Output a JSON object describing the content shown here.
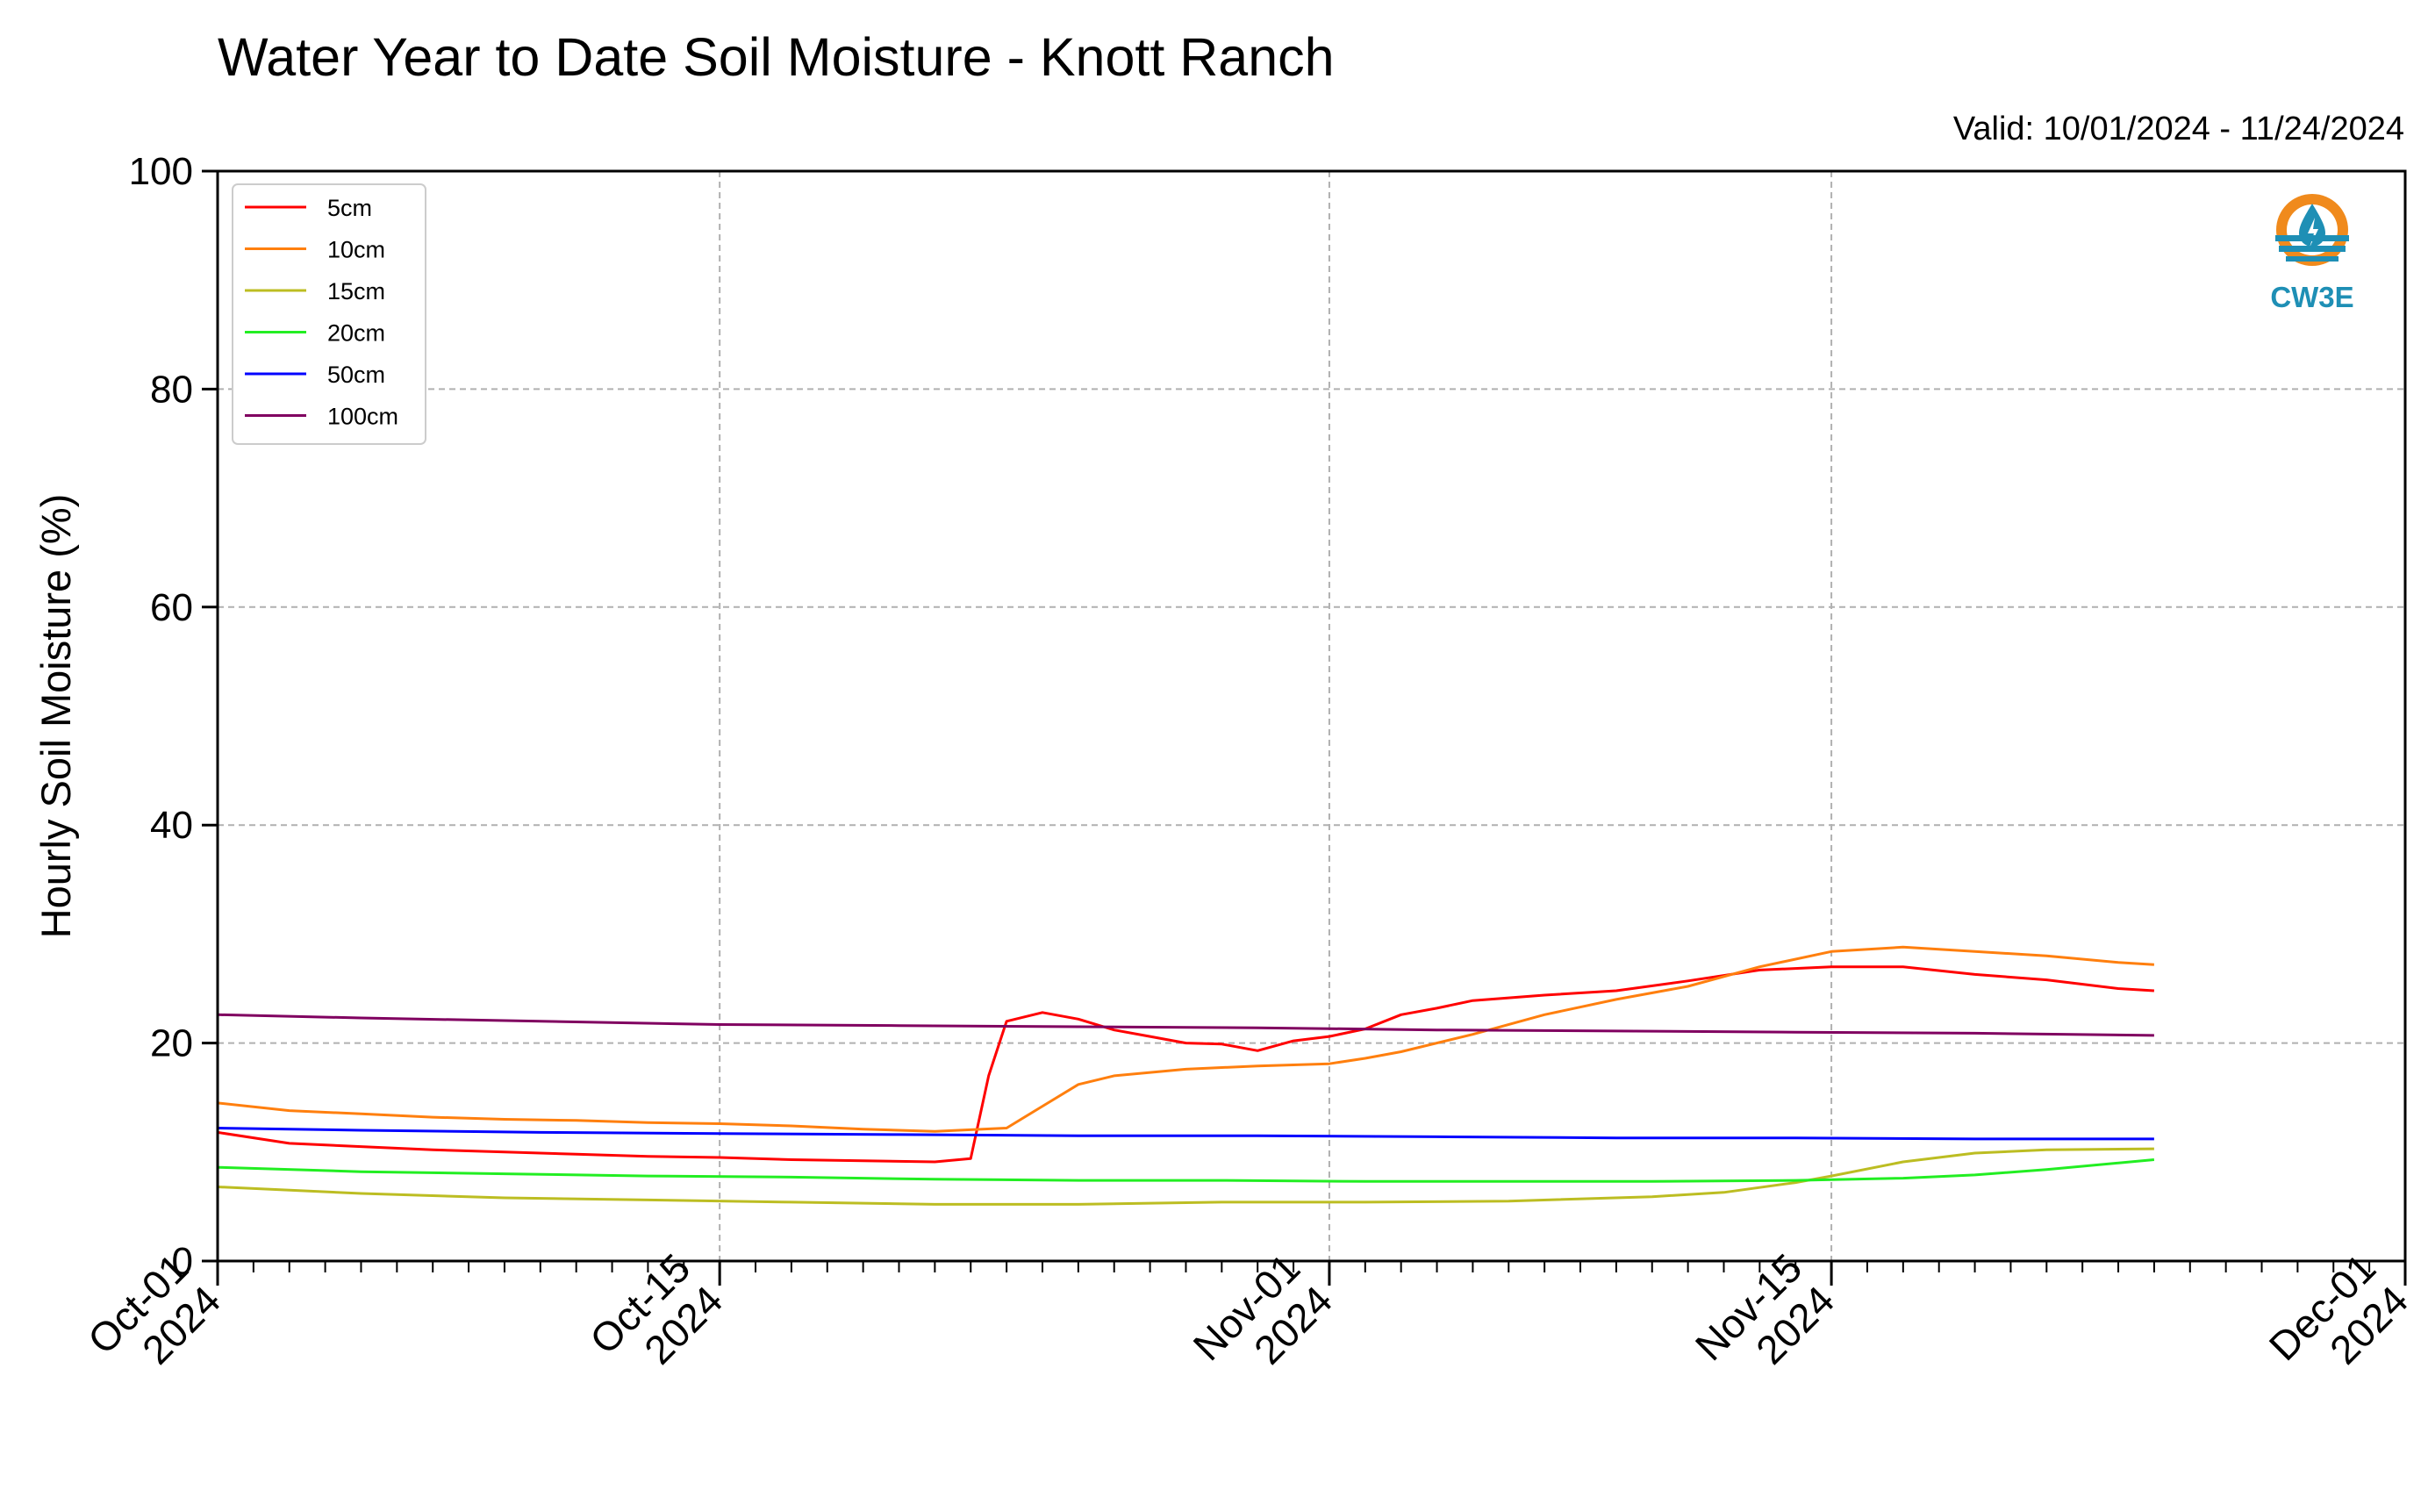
{
  "chart_data": {
    "type": "line",
    "title": "Water Year to Date Soil Moisture - Knott Ranch",
    "valid_text": "Valid: 10/01/2024 - 11/24/2024",
    "ylabel": "Hourly Soil Moisture (%)",
    "xlabel": "",
    "ylim": [
      0,
      100
    ],
    "xlim": [
      "2024-10-01",
      "2024-12-01"
    ],
    "yticks": [
      0,
      20,
      40,
      60,
      80,
      100
    ],
    "xticks": [
      {
        "date": "2024-10-01",
        "line1": "Oct-01",
        "line2": "2024"
      },
      {
        "date": "2024-10-15",
        "line1": "Oct-15",
        "line2": "2024"
      },
      {
        "date": "2024-11-01",
        "line1": "Nov-01",
        "line2": "2024"
      },
      {
        "date": "2024-11-15",
        "line1": "Nov-15",
        "line2": "2024"
      },
      {
        "date": "2024-12-01",
        "line1": "Dec-01",
        "line2": "2024"
      }
    ],
    "grid": true,
    "legend_position": "upper-left",
    "logo_text": "CW3E",
    "series": [
      {
        "name": "5cm",
        "color": "#ff0000",
        "points": [
          [
            "2024-10-01",
            11.8
          ],
          [
            "2024-10-03",
            10.8
          ],
          [
            "2024-10-05",
            10.5
          ],
          [
            "2024-10-07",
            10.2
          ],
          [
            "2024-10-09",
            10.0
          ],
          [
            "2024-10-11",
            9.8
          ],
          [
            "2024-10-13",
            9.6
          ],
          [
            "2024-10-15",
            9.5
          ],
          [
            "2024-10-17",
            9.3
          ],
          [
            "2024-10-19",
            9.2
          ],
          [
            "2024-10-21",
            9.1
          ],
          [
            "2024-10-22",
            9.4
          ],
          [
            "2024-10-22T12:00",
            17.0
          ],
          [
            "2024-10-23",
            22.0
          ],
          [
            "2024-10-24",
            22.8
          ],
          [
            "2024-10-25",
            22.2
          ],
          [
            "2024-10-26",
            21.2
          ],
          [
            "2024-10-27",
            20.6
          ],
          [
            "2024-10-28",
            20.0
          ],
          [
            "2024-10-29",
            19.9
          ],
          [
            "2024-10-30",
            19.3
          ],
          [
            "2024-10-31",
            20.2
          ],
          [
            "2024-11-01",
            20.6
          ],
          [
            "2024-11-02",
            21.3
          ],
          [
            "2024-11-03",
            22.6
          ],
          [
            "2024-11-04",
            23.2
          ],
          [
            "2024-11-05",
            23.9
          ],
          [
            "2024-11-07",
            24.4
          ],
          [
            "2024-11-09",
            24.8
          ],
          [
            "2024-11-11",
            25.7
          ],
          [
            "2024-11-13",
            26.7
          ],
          [
            "2024-11-15",
            27.0
          ],
          [
            "2024-11-17",
            27.0
          ],
          [
            "2024-11-19",
            26.3
          ],
          [
            "2024-11-21",
            25.8
          ],
          [
            "2024-11-23",
            25.0
          ],
          [
            "2024-11-24",
            24.8
          ]
        ]
      },
      {
        "name": "10cm",
        "color": "#ff7f0e",
        "points": [
          [
            "2024-10-01",
            14.5
          ],
          [
            "2024-10-03",
            13.8
          ],
          [
            "2024-10-05",
            13.5
          ],
          [
            "2024-10-07",
            13.2
          ],
          [
            "2024-10-09",
            13.0
          ],
          [
            "2024-10-11",
            12.9
          ],
          [
            "2024-10-13",
            12.7
          ],
          [
            "2024-10-15",
            12.6
          ],
          [
            "2024-10-17",
            12.4
          ],
          [
            "2024-10-19",
            12.1
          ],
          [
            "2024-10-21",
            11.9
          ],
          [
            "2024-10-23",
            12.2
          ],
          [
            "2024-10-24",
            14.2
          ],
          [
            "2024-10-25",
            16.2
          ],
          [
            "2024-10-26",
            17.0
          ],
          [
            "2024-10-28",
            17.6
          ],
          [
            "2024-10-30",
            17.9
          ],
          [
            "2024-11-01",
            18.1
          ],
          [
            "2024-11-02",
            18.6
          ],
          [
            "2024-11-03",
            19.2
          ],
          [
            "2024-11-05",
            20.8
          ],
          [
            "2024-11-07",
            22.6
          ],
          [
            "2024-11-09",
            24.0
          ],
          [
            "2024-11-11",
            25.2
          ],
          [
            "2024-11-13",
            27.0
          ],
          [
            "2024-11-15",
            28.4
          ],
          [
            "2024-11-17",
            28.8
          ],
          [
            "2024-11-19",
            28.4
          ],
          [
            "2024-11-21",
            28.0
          ],
          [
            "2024-11-23",
            27.4
          ],
          [
            "2024-11-24",
            27.2
          ]
        ]
      },
      {
        "name": "15cm",
        "color": "#bcbd22",
        "points": [
          [
            "2024-10-01",
            6.8
          ],
          [
            "2024-10-05",
            6.2
          ],
          [
            "2024-10-09",
            5.8
          ],
          [
            "2024-10-13",
            5.6
          ],
          [
            "2024-10-17",
            5.4
          ],
          [
            "2024-10-21",
            5.2
          ],
          [
            "2024-10-25",
            5.2
          ],
          [
            "2024-10-29",
            5.4
          ],
          [
            "2024-11-02",
            5.4
          ],
          [
            "2024-11-06",
            5.5
          ],
          [
            "2024-11-10",
            5.9
          ],
          [
            "2024-11-12",
            6.3
          ],
          [
            "2024-11-14",
            7.2
          ],
          [
            "2024-11-15",
            7.8
          ],
          [
            "2024-11-17",
            9.1
          ],
          [
            "2024-11-19",
            9.9
          ],
          [
            "2024-11-21",
            10.2
          ],
          [
            "2024-11-24",
            10.3
          ]
        ]
      },
      {
        "name": "20cm",
        "color": "#22ee22",
        "points": [
          [
            "2024-10-01",
            8.6
          ],
          [
            "2024-10-05",
            8.2
          ],
          [
            "2024-10-09",
            8.0
          ],
          [
            "2024-10-13",
            7.8
          ],
          [
            "2024-10-17",
            7.7
          ],
          [
            "2024-10-21",
            7.5
          ],
          [
            "2024-10-25",
            7.4
          ],
          [
            "2024-10-29",
            7.4
          ],
          [
            "2024-11-02",
            7.3
          ],
          [
            "2024-11-06",
            7.3
          ],
          [
            "2024-11-10",
            7.3
          ],
          [
            "2024-11-14",
            7.4
          ],
          [
            "2024-11-17",
            7.6
          ],
          [
            "2024-11-19",
            7.9
          ],
          [
            "2024-11-21",
            8.4
          ],
          [
            "2024-11-24",
            9.3
          ]
        ]
      },
      {
        "name": "50cm",
        "color": "#0000ff",
        "points": [
          [
            "2024-10-01",
            12.2
          ],
          [
            "2024-10-05",
            12.0
          ],
          [
            "2024-10-10",
            11.8
          ],
          [
            "2024-10-15",
            11.7
          ],
          [
            "2024-10-20",
            11.6
          ],
          [
            "2024-10-25",
            11.5
          ],
          [
            "2024-10-30",
            11.5
          ],
          [
            "2024-11-04",
            11.4
          ],
          [
            "2024-11-09",
            11.3
          ],
          [
            "2024-11-14",
            11.3
          ],
          [
            "2024-11-19",
            11.2
          ],
          [
            "2024-11-24",
            11.2
          ]
        ]
      },
      {
        "name": "100cm",
        "color": "#800060",
        "points": [
          [
            "2024-10-01",
            22.6
          ],
          [
            "2024-10-05",
            22.3
          ],
          [
            "2024-10-10",
            22.0
          ],
          [
            "2024-10-15",
            21.7
          ],
          [
            "2024-10-20",
            21.6
          ],
          [
            "2024-10-25",
            21.5
          ],
          [
            "2024-10-30",
            21.4
          ],
          [
            "2024-11-04",
            21.2
          ],
          [
            "2024-11-09",
            21.1
          ],
          [
            "2024-11-14",
            21.0
          ],
          [
            "2024-11-19",
            20.9
          ],
          [
            "2024-11-24",
            20.7
          ]
        ]
      }
    ]
  }
}
